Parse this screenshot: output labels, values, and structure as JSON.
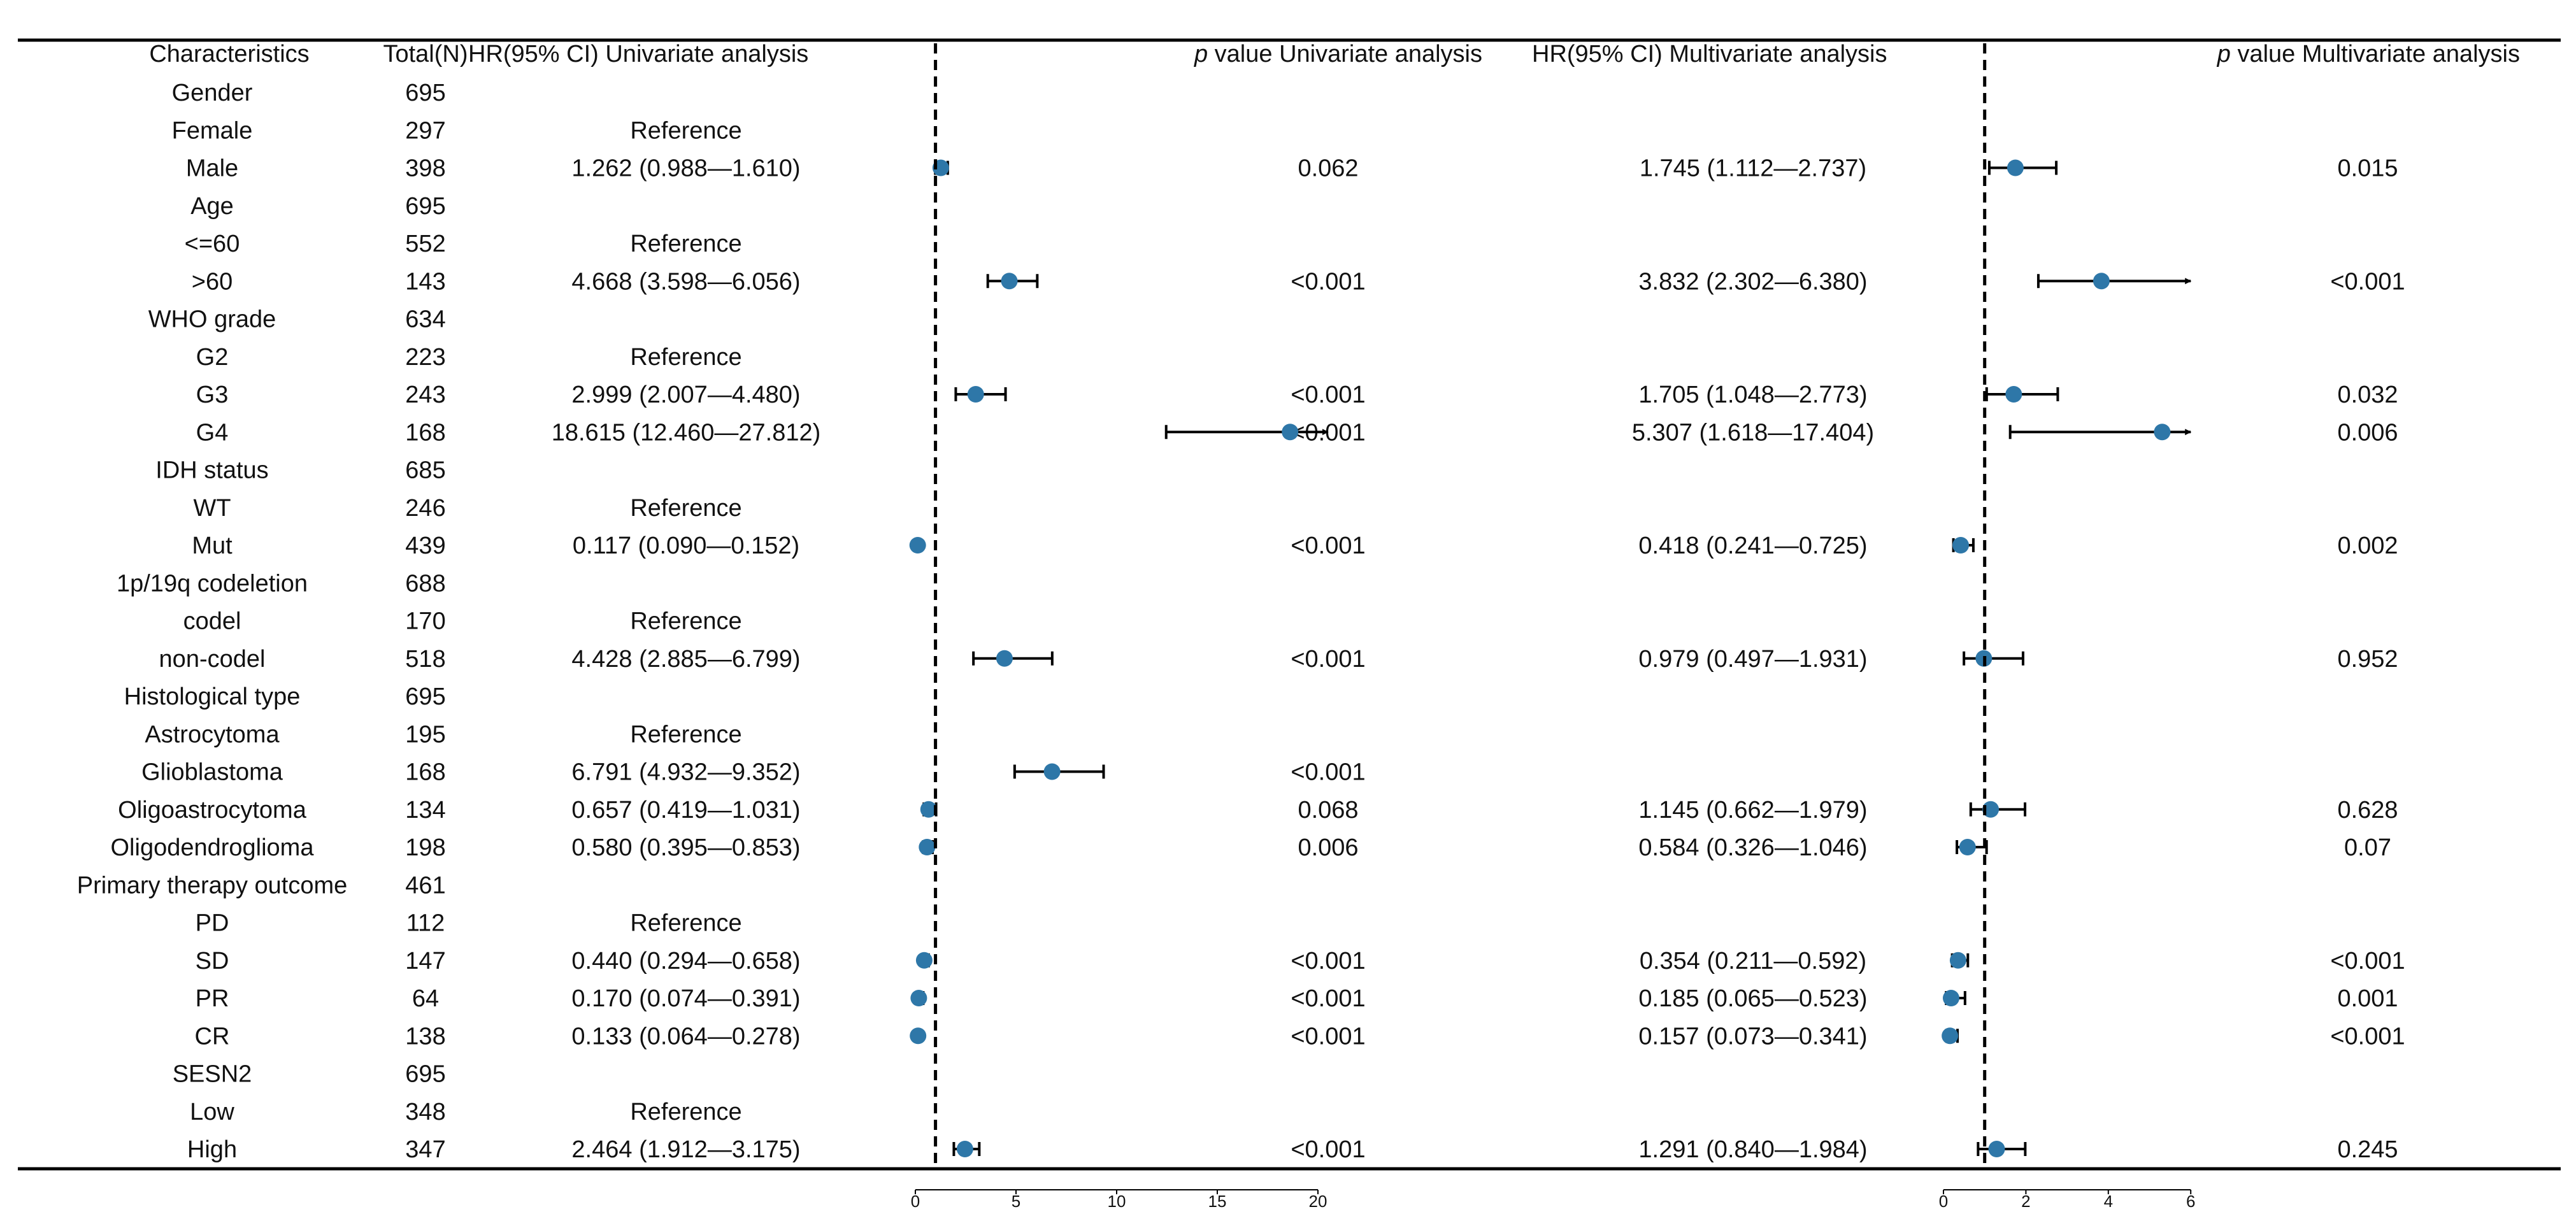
{
  "headers": {
    "characteristics": "Characteristics",
    "total": "Total(N)",
    "hr_uni": "HR(95% CI) Univariate analysis",
    "p_uni_italic": "p",
    "p_uni_rest": " value Univariate analysis",
    "hr_multi": "HR(95% CI) Multivariate analysis",
    "p_multi_italic": "p",
    "p_multi_rest": " value Multivariate analysis"
  },
  "colors": {
    "point": "#2e77a8",
    "line": "#000000"
  },
  "chart_data": {
    "type": "forest",
    "panels": [
      {
        "name": "Univariate analysis",
        "ticks": [
          "0",
          "5",
          "10",
          "15",
          "20"
        ],
        "xlim": [
          0,
          20
        ],
        "reference_line": 1
      },
      {
        "name": "Multivariate analysis",
        "ticks": [
          "0",
          "2",
          "4",
          "6"
        ],
        "xlim": [
          0,
          6
        ],
        "reference_line": 1
      }
    ],
    "rows": [
      {
        "label": "Gender",
        "n": "695",
        "header": true
      },
      {
        "label": "Female",
        "n": "297",
        "uni_text": "Reference"
      },
      {
        "label": "Male",
        "n": "398",
        "uni_text": "1.262 (0.988—1.610)",
        "uni": [
          1.262,
          0.988,
          1.61
        ],
        "p_uni": "0.062",
        "multi_text": "1.745 (1.112—2.737)",
        "multi": [
          1.745,
          1.112,
          2.737
        ],
        "p_multi": "0.015"
      },
      {
        "label": "Age",
        "n": "695",
        "header": true
      },
      {
        "label": "<=60",
        "n": "552",
        "uni_text": "Reference"
      },
      {
        "label": ">60",
        "n": "143",
        "uni_text": "4.668 (3.598—6.056)",
        "uni": [
          4.668,
          3.598,
          6.056
        ],
        "p_uni": "<0.001",
        "multi_text": "3.832 (2.302—6.380)",
        "multi": [
          3.832,
          2.302,
          6.38
        ],
        "p_multi": "<0.001"
      },
      {
        "label": "WHO grade",
        "n": "634",
        "header": true
      },
      {
        "label": "G2",
        "n": "223",
        "uni_text": "Reference"
      },
      {
        "label": "G3",
        "n": "243",
        "uni_text": "2.999 (2.007—4.480)",
        "uni": [
          2.999,
          2.007,
          4.48
        ],
        "p_uni": "<0.001",
        "multi_text": "1.705 (1.048—2.773)",
        "multi": [
          1.705,
          1.048,
          2.773
        ],
        "p_multi": "0.032"
      },
      {
        "label": "G4",
        "n": "168",
        "uni_text": "18.615 (12.460—27.812)",
        "uni": [
          18.615,
          12.46,
          27.812
        ],
        "p_uni": "<0.001",
        "multi_text": "5.307 (1.618—17.404)",
        "multi": [
          5.307,
          1.618,
          17.404
        ],
        "p_multi": "0.006"
      },
      {
        "label": "IDH status",
        "n": "685",
        "header": true
      },
      {
        "label": "WT",
        "n": "246",
        "uni_text": "Reference"
      },
      {
        "label": "Mut",
        "n": "439",
        "uni_text": "0.117 (0.090—0.152)",
        "uni": [
          0.117,
          0.09,
          0.152
        ],
        "p_uni": "<0.001",
        "multi_text": "0.418 (0.241—0.725)",
        "multi": [
          0.418,
          0.241,
          0.725
        ],
        "p_multi": "0.002"
      },
      {
        "label": "1p/19q codeletion",
        "n": "688",
        "header": true
      },
      {
        "label": "codel",
        "n": "170",
        "uni_text": "Reference"
      },
      {
        "label": "non-codel",
        "n": "518",
        "uni_text": "4.428 (2.885—6.799)",
        "uni": [
          4.428,
          2.885,
          6.799
        ],
        "p_uni": "<0.001",
        "multi_text": "0.979 (0.497—1.931)",
        "multi": [
          0.979,
          0.497,
          1.931
        ],
        "p_multi": "0.952"
      },
      {
        "label": "Histological type",
        "n": "695",
        "header": true
      },
      {
        "label": "Astrocytoma",
        "n": "195",
        "uni_text": "Reference"
      },
      {
        "label": "Glioblastoma",
        "n": "168",
        "uni_text": "6.791 (4.932—9.352)",
        "uni": [
          6.791,
          4.932,
          9.352
        ],
        "p_uni": "<0.001"
      },
      {
        "label": "Oligoastrocytoma",
        "n": "134",
        "uni_text": "0.657 (0.419—1.031)",
        "uni": [
          0.657,
          0.419,
          1.031
        ],
        "p_uni": "0.068",
        "multi_text": "1.145 (0.662—1.979)",
        "multi": [
          1.145,
          0.662,
          1.979
        ],
        "p_multi": "0.628"
      },
      {
        "label": "Oligodendroglioma",
        "n": "198",
        "uni_text": "0.580 (0.395—0.853)",
        "uni": [
          0.58,
          0.395,
          0.853
        ],
        "p_uni": "0.006",
        "multi_text": "0.584 (0.326—1.046)",
        "multi": [
          0.584,
          0.326,
          1.046
        ],
        "p_multi": "0.07"
      },
      {
        "label": "Primary therapy outcome",
        "n": "461",
        "header": true
      },
      {
        "label": "PD",
        "n": "112",
        "uni_text": "Reference"
      },
      {
        "label": "SD",
        "n": "147",
        "uni_text": "0.440 (0.294—0.658)",
        "uni": [
          0.44,
          0.294,
          0.658
        ],
        "p_uni": "<0.001",
        "multi_text": "0.354 (0.211—0.592)",
        "multi": [
          0.354,
          0.211,
          0.592
        ],
        "p_multi": "<0.001"
      },
      {
        "label": "PR",
        "n": "64",
        "uni_text": "0.170 (0.074—0.391)",
        "uni": [
          0.17,
          0.074,
          0.391
        ],
        "p_uni": "<0.001",
        "multi_text": "0.185 (0.065—0.523)",
        "multi": [
          0.185,
          0.065,
          0.523
        ],
        "p_multi": "0.001"
      },
      {
        "label": "CR",
        "n": "138",
        "uni_text": "0.133 (0.064—0.278)",
        "uni": [
          0.133,
          0.064,
          0.278
        ],
        "p_uni": "<0.001",
        "multi_text": "0.157 (0.073—0.341)",
        "multi": [
          0.157,
          0.073,
          0.341
        ],
        "p_multi": "<0.001"
      },
      {
        "label": "SESN2",
        "n": "695",
        "header": true
      },
      {
        "label": "Low",
        "n": "348",
        "uni_text": "Reference"
      },
      {
        "label": "High",
        "n": "347",
        "uni_text": "2.464 (1.912—3.175)",
        "uni": [
          2.464,
          1.912,
          3.175
        ],
        "p_uni": "<0.001",
        "multi_text": "1.291 (0.840—1.984)",
        "multi": [
          1.291,
          0.84,
          1.984
        ],
        "p_multi": "0.245"
      }
    ]
  }
}
